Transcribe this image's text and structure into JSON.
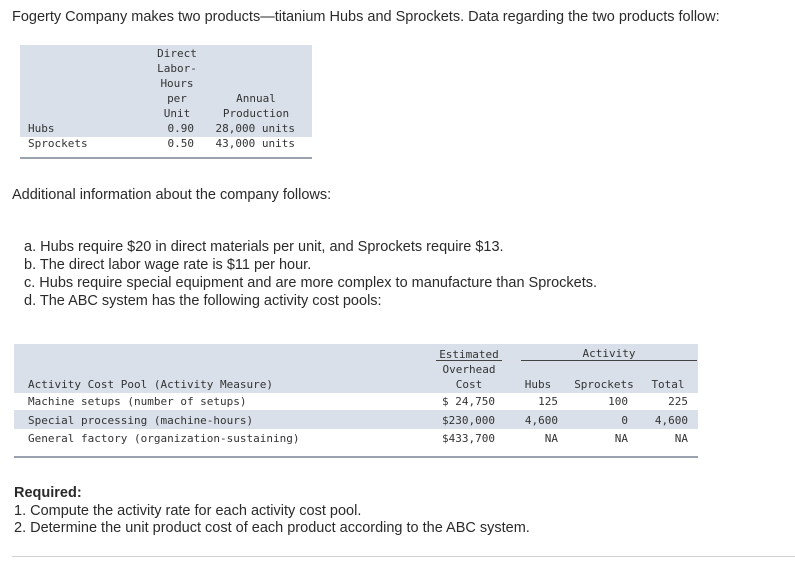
{
  "intro": "Fogerty Company makes two products—titanium Hubs and Sprockets. Data regarding the two products follow:",
  "products_table": {
    "header_col1": [
      "Direct",
      "Labor-",
      "Hours",
      "per",
      "Unit"
    ],
    "header_col2": [
      "Annual",
      "Production"
    ],
    "rows": [
      {
        "name": "Hubs",
        "dlh": "0.90",
        "production": "28,000 units"
      },
      {
        "name": "Sprockets",
        "dlh": "0.50",
        "production": "43,000 units"
      }
    ]
  },
  "additional_heading": "Additional information about the company follows:",
  "info_items": [
    "a. Hubs require $20 in direct materials per unit, and Sprockets require $13.",
    "b. The direct labor wage rate is $11 per hour.",
    "c. Hubs require special equipment and are more complex to manufacture than Sprockets.",
    "d. The ABC system has the following activity cost pools:"
  ],
  "abc_table": {
    "header_cost": [
      "Estimated",
      "Overhead",
      "Cost"
    ],
    "header_activity": "Activity",
    "header_pool": "Activity Cost Pool (Activity Measure)",
    "header_hubs": "Hubs",
    "header_sprockets": "Sprockets",
    "header_total": "Total",
    "rows": [
      {
        "pool": "Machine setups (number of setups)",
        "cost": "$ 24,750",
        "hubs": "125",
        "sprockets": "100",
        "total": "225"
      },
      {
        "pool": "Special processing (machine-hours)",
        "cost": "$230,000",
        "hubs": "4,600",
        "sprockets": "0",
        "total": "4,600"
      },
      {
        "pool": "General factory (organization-sustaining)",
        "cost": "$433,700",
        "hubs": "NA",
        "sprockets": "NA",
        "total": "NA"
      }
    ]
  },
  "required": {
    "label": "Required:",
    "items": [
      "1. Compute the activity rate for each activity cost pool.",
      "2. Determine the unit product cost of each product according to the ABC system."
    ]
  }
}
